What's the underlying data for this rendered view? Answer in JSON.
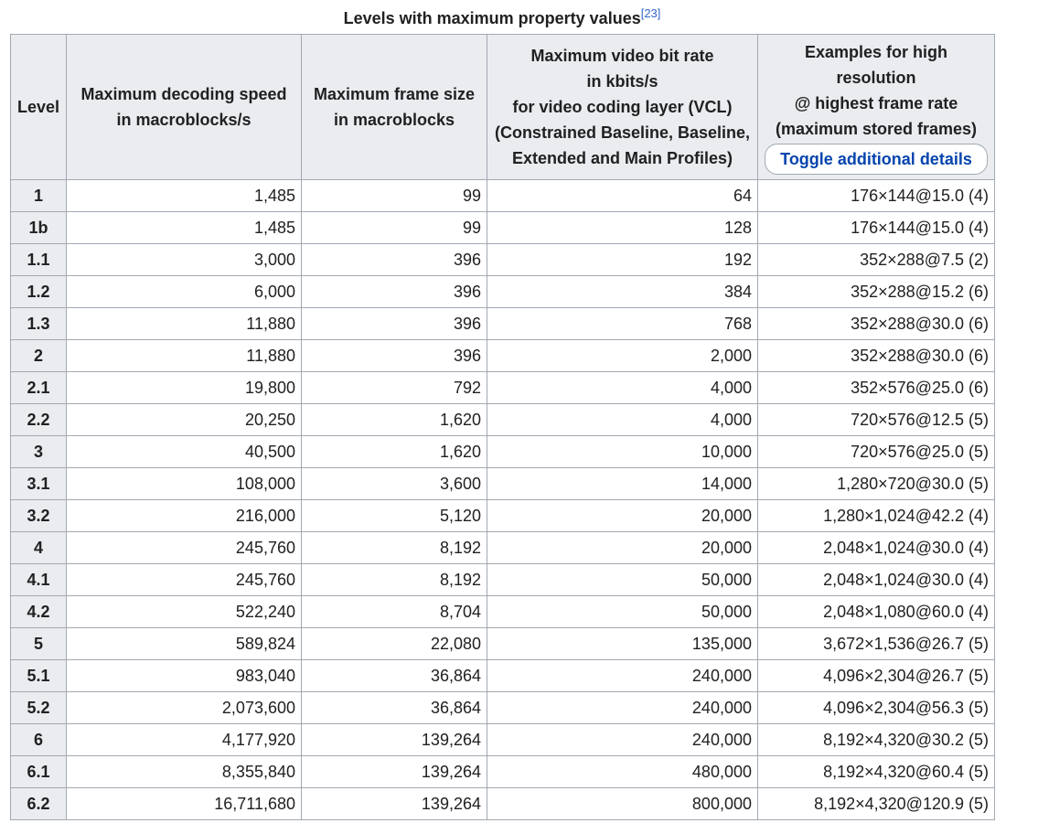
{
  "caption": {
    "title": "Levels with maximum property values",
    "ref": "[23]"
  },
  "headers": {
    "level": "Level",
    "decoding_speed": [
      "Maximum decoding speed",
      "in macroblocks/s"
    ],
    "frame_size": [
      "Maximum frame size",
      "in macroblocks"
    ],
    "bit_rate": [
      "Maximum video bit rate",
      "in kbits/s",
      "for video coding layer (VCL)",
      "(Constrained Baseline, Baseline,",
      "Extended and Main Profiles)"
    ],
    "examples": [
      "Examples for high resolution",
      "@ highest frame rate",
      "(maximum stored frames)"
    ],
    "toggle_label": "Toggle additional details"
  },
  "rows": [
    {
      "level": "1",
      "speed": "1,485",
      "frame": "99",
      "bitrate": "64",
      "example": "176×144@15.0 (4)"
    },
    {
      "level": "1b",
      "speed": "1,485",
      "frame": "99",
      "bitrate": "128",
      "example": "176×144@15.0 (4)"
    },
    {
      "level": "1.1",
      "speed": "3,000",
      "frame": "396",
      "bitrate": "192",
      "example": "352×288@7.5 (2)"
    },
    {
      "level": "1.2",
      "speed": "6,000",
      "frame": "396",
      "bitrate": "384",
      "example": "352×288@15.2 (6)"
    },
    {
      "level": "1.3",
      "speed": "11,880",
      "frame": "396",
      "bitrate": "768",
      "example": "352×288@30.0 (6)"
    },
    {
      "level": "2",
      "speed": "11,880",
      "frame": "396",
      "bitrate": "2,000",
      "example": "352×288@30.0 (6)"
    },
    {
      "level": "2.1",
      "speed": "19,800",
      "frame": "792",
      "bitrate": "4,000",
      "example": "352×576@25.0 (6)"
    },
    {
      "level": "2.2",
      "speed": "20,250",
      "frame": "1,620",
      "bitrate": "4,000",
      "example": "720×576@12.5 (5)"
    },
    {
      "level": "3",
      "speed": "40,500",
      "frame": "1,620",
      "bitrate": "10,000",
      "example": "720×576@25.0 (5)"
    },
    {
      "level": "3.1",
      "speed": "108,000",
      "frame": "3,600",
      "bitrate": "14,000",
      "example": "1,280×720@30.0 (5)"
    },
    {
      "level": "3.2",
      "speed": "216,000",
      "frame": "5,120",
      "bitrate": "20,000",
      "example": "1,280×1,024@42.2 (4)"
    },
    {
      "level": "4",
      "speed": "245,760",
      "frame": "8,192",
      "bitrate": "20,000",
      "example": "2,048×1,024@30.0 (4)"
    },
    {
      "level": "4.1",
      "speed": "245,760",
      "frame": "8,192",
      "bitrate": "50,000",
      "example": "2,048×1,024@30.0 (4)"
    },
    {
      "level": "4.2",
      "speed": "522,240",
      "frame": "8,704",
      "bitrate": "50,000",
      "example": "2,048×1,080@60.0 (4)"
    },
    {
      "level": "5",
      "speed": "589,824",
      "frame": "22,080",
      "bitrate": "135,000",
      "example": "3,672×1,536@26.7 (5)"
    },
    {
      "level": "5.1",
      "speed": "983,040",
      "frame": "36,864",
      "bitrate": "240,000",
      "example": "4,096×2,304@26.7 (5)"
    },
    {
      "level": "5.2",
      "speed": "2,073,600",
      "frame": "36,864",
      "bitrate": "240,000",
      "example": "4,096×2,304@56.3 (5)"
    },
    {
      "level": "6",
      "speed": "4,177,920",
      "frame": "139,264",
      "bitrate": "240,000",
      "example": "8,192×4,320@30.2 (5)"
    },
    {
      "level": "6.1",
      "speed": "8,355,840",
      "frame": "139,264",
      "bitrate": "480,000",
      "example": "8,192×4,320@60.4 (5)"
    },
    {
      "level": "6.2",
      "speed": "16,711,680",
      "frame": "139,264",
      "bitrate": "800,000",
      "example": "8,192×4,320@120.9 (5)"
    }
  ]
}
